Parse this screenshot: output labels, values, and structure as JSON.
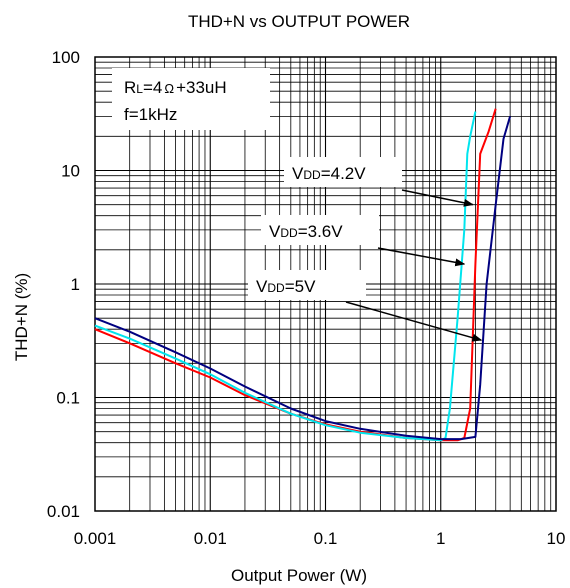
{
  "chart_data": {
    "type": "line",
    "title": "THD+N vs OUTPUT POWER",
    "xlabel": "Output Power (W)",
    "ylabel": "THD+N (%)",
    "x_scale": "log",
    "y_scale": "log",
    "xlim": [
      0.001,
      10
    ],
    "ylim": [
      0.01,
      100
    ],
    "x_ticks": [
      "0.001",
      "0.01",
      "0.1",
      "1",
      "10"
    ],
    "y_ticks": [
      "0.01",
      "0.1",
      "1",
      "10",
      "100"
    ],
    "grid": true,
    "conditions": {
      "load_prefix": "R",
      "load_sub": "L",
      "load_value": "=4",
      "ohm": "Ω",
      "load_suffix": "+33uH",
      "freq": "f=1kHz"
    },
    "series": [
      {
        "name": "VDD=4.2V",
        "label_prefix": "V",
        "label_sub": "DD",
        "label_value": "=4.2V",
        "color": "#ff0000",
        "x": [
          0.001,
          0.002,
          0.005,
          0.01,
          0.02,
          0.05,
          0.1,
          0.2,
          0.5,
          1.0,
          1.4,
          1.6,
          1.8,
          2.0,
          2.2,
          2.6,
          3.0
        ],
        "y": [
          0.4,
          0.3,
          0.2,
          0.15,
          0.105,
          0.072,
          0.058,
          0.05,
          0.044,
          0.042,
          0.042,
          0.044,
          0.08,
          1.5,
          14,
          22,
          35
        ]
      },
      {
        "name": "VDD=3.6V",
        "label_prefix": "V",
        "label_sub": "DD",
        "label_value": "=3.6V",
        "color": "#00e5ee",
        "x": [
          0.001,
          0.002,
          0.005,
          0.01,
          0.02,
          0.05,
          0.1,
          0.2,
          0.5,
          1.0,
          1.1,
          1.2,
          1.4,
          1.6,
          1.7,
          1.8,
          2.0
        ],
        "y": [
          0.43,
          0.33,
          0.22,
          0.16,
          0.11,
          0.072,
          0.057,
          0.049,
          0.044,
          0.042,
          0.044,
          0.08,
          0.5,
          3,
          14,
          20,
          33
        ]
      },
      {
        "name": "VDD=5V",
        "label_prefix": "V",
        "label_sub": "DD",
        "label_value": "=5V",
        "color": "#000080",
        "x": [
          0.001,
          0.002,
          0.005,
          0.01,
          0.02,
          0.05,
          0.1,
          0.2,
          0.5,
          1.0,
          1.5,
          2.0,
          2.2,
          2.5,
          3.0,
          3.5,
          4.0
        ],
        "y": [
          0.5,
          0.38,
          0.25,
          0.18,
          0.125,
          0.08,
          0.062,
          0.053,
          0.046,
          0.043,
          0.043,
          0.045,
          0.13,
          1.0,
          5.0,
          19,
          30
        ]
      }
    ]
  }
}
